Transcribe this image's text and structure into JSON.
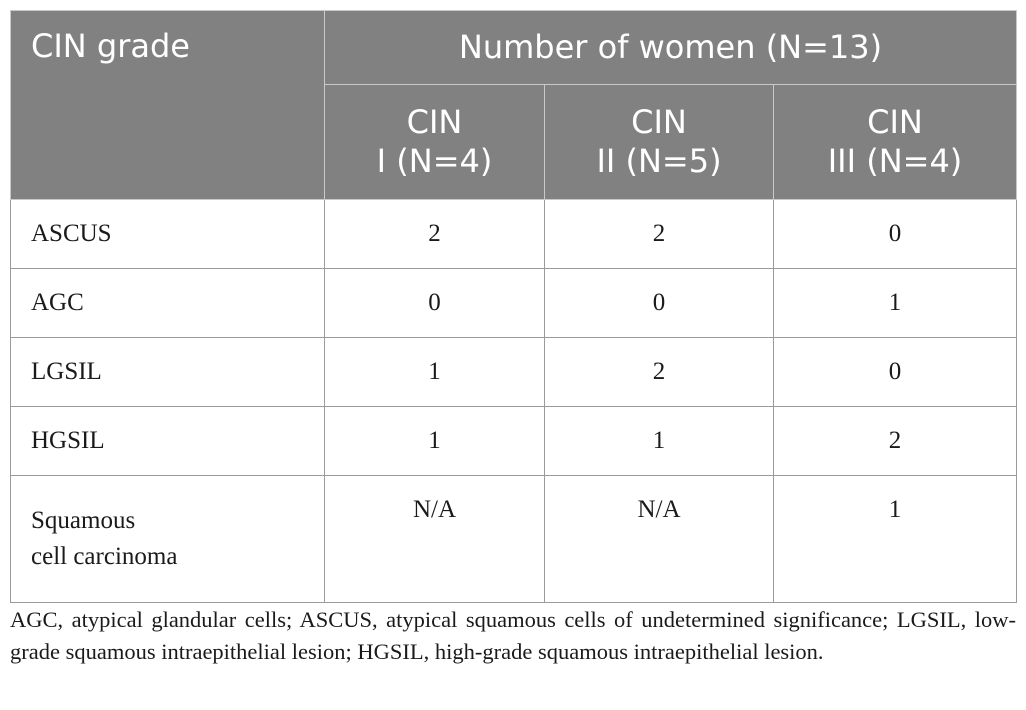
{
  "table": {
    "header": {
      "row_label": "CIN grade",
      "group_label": "Number of women (N=13)",
      "columns": [
        {
          "line1": "CIN",
          "line2": "I (N=4)"
        },
        {
          "line1": "CIN",
          "line2": "II (N=5)"
        },
        {
          "line1": "CIN",
          "line2": "III (N=4)"
        }
      ]
    },
    "rows": [
      {
        "label": "ASCUS",
        "values": [
          "2",
          "2",
          "0"
        ]
      },
      {
        "label": "AGC",
        "values": [
          "0",
          "0",
          "1"
        ]
      },
      {
        "label": "LGSIL",
        "values": [
          "1",
          "2",
          "0"
        ]
      },
      {
        "label": "HGSIL",
        "values": [
          "1",
          "1",
          "2"
        ]
      },
      {
        "label_line1": "Squamous",
        "label_line2": "cell carcinoma",
        "values": [
          "N/A",
          "N/A",
          "1"
        ]
      }
    ]
  },
  "footnote": "AGC, atypical glandular cells; ASCUS, atypical squamous cells of undetermined significance; LGSIL, low-grade squamous intraepithelial lesion; HGSIL, high-grade squamous intraepithelial lesion."
}
